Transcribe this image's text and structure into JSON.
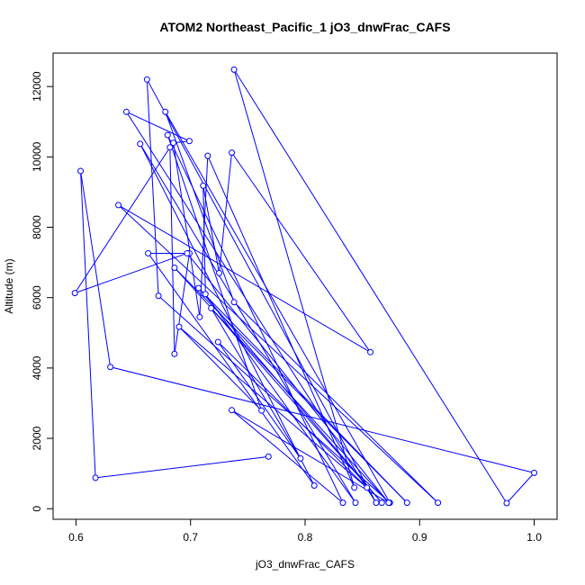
{
  "chart_data": {
    "type": "line",
    "title": "ATOM2 Northeast_Pacific_1 jO3_dnwFrac_CAFS",
    "xlabel": "jO3_dnwFrac_CAFS",
    "ylabel": "Altitude (m)",
    "xlim": [
      0.58,
      1.02
    ],
    "ylim": [
      -300,
      12950
    ],
    "x_ticks": [
      0.6,
      0.7,
      0.8,
      0.9,
      1.0
    ],
    "x_tick_labels": [
      "0.6",
      "0.7",
      "0.8",
      "0.9",
      "1.0"
    ],
    "y_ticks": [
      0,
      2000,
      4000,
      6000,
      8000,
      10000,
      12000
    ],
    "y_tick_labels": [
      "0",
      "2000",
      "4000",
      "6000",
      "8000",
      "10000",
      "12000"
    ],
    "grid": false,
    "legend": "none",
    "color": "#0000ff",
    "series": [
      {
        "points": [
          [
            0.768,
            1480
          ],
          [
            0.617,
            880
          ],
          [
            0.604,
            9600
          ],
          [
            0.63,
            4030
          ],
          [
            1.0,
            1020
          ],
          [
            0.976,
            160
          ],
          [
            0.738,
            12480
          ],
          [
            0.843,
            600
          ],
          [
            0.715,
            10030
          ],
          [
            0.708,
            5450
          ],
          [
            0.685,
            10400
          ],
          [
            0.699,
            10450
          ],
          [
            0.644,
            11280
          ],
          [
            0.862,
            170
          ],
          [
            0.662,
            12200
          ],
          [
            0.672,
            6050
          ],
          [
            0.874,
            170
          ],
          [
            0.678,
            11280
          ],
          [
            0.738,
            5870
          ],
          [
            0.916,
            170
          ],
          [
            0.637,
            8630
          ],
          [
            0.857,
            4450
          ],
          [
            0.736,
            10120
          ],
          [
            0.725,
            6700
          ],
          [
            0.711,
            9180
          ],
          [
            0.713,
            6100
          ],
          [
            0.844,
            170
          ],
          [
            0.656,
            10370
          ],
          [
            0.808,
            660
          ],
          [
            0.663,
            7260
          ],
          [
            0.699,
            7260
          ],
          [
            0.686,
            4400
          ],
          [
            0.682,
            10270
          ],
          [
            0.599,
            6130
          ],
          [
            0.697,
            7260
          ],
          [
            0.873,
            170
          ],
          [
            0.686,
            6850
          ],
          [
            0.889,
            170
          ],
          [
            0.707,
            6270
          ],
          [
            0.867,
            170
          ],
          [
            0.718,
            5700
          ],
          [
            0.796,
            1430
          ],
          [
            0.724,
            4740
          ],
          [
            0.854,
            600
          ],
          [
            0.69,
            5170
          ],
          [
            0.762,
            2790
          ],
          [
            0.68,
            10620
          ],
          [
            0.833,
            170
          ],
          [
            0.736,
            2800
          ],
          [
            0.873,
            170
          ]
        ]
      }
    ]
  }
}
